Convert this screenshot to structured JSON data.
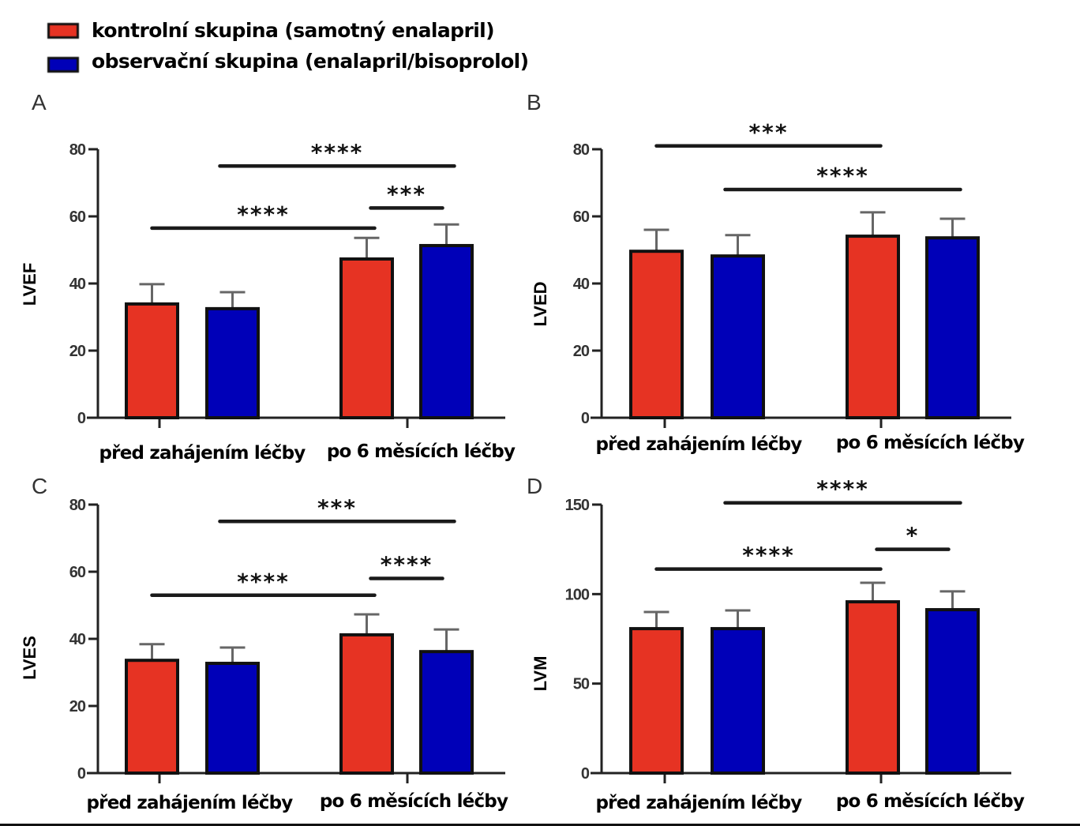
{
  "legend": {
    "items": [
      {
        "label": "kontrolní skupina (samotný enalapril)",
        "color": "#e63323"
      },
      {
        "label": "observační skupina (enalapril/bisoprolol)",
        "color": "#0000b8"
      }
    ]
  },
  "colors": {
    "control": "#e63323",
    "observation": "#0000b8",
    "axis": "#222222",
    "error": "#666666"
  },
  "chart_data": [
    {
      "panel": "A",
      "type": "bar",
      "ylabel": "LVEF",
      "xlabel": "",
      "ylim": [
        0,
        80
      ],
      "yticks": [
        "0",
        "20",
        "40",
        "60",
        "80"
      ],
      "ytick_values": [
        0,
        20,
        40,
        60,
        80
      ],
      "categories": [
        "před zahájením léčby",
        "po 6 měsících léčby"
      ],
      "series": [
        {
          "name": "kontrolní skupina (samotný enalapril)",
          "values": [
            33.9,
            47.3
          ],
          "error": [
            5.9,
            6.3
          ]
        },
        {
          "name": "observační skupina (enalapril/bisoprolol)",
          "values": [
            32.5,
            51.3
          ],
          "error": [
            4.9,
            6.3
          ]
        }
      ],
      "significance": [
        {
          "from": [
            0,
            1
          ],
          "to": [
            1,
            1
          ],
          "y": 75,
          "label": "****"
        },
        {
          "from": [
            1,
            0
          ],
          "to": [
            1,
            1
          ],
          "y": 62.5,
          "label": "***"
        },
        {
          "from": [
            0,
            0
          ],
          "to": [
            1,
            0
          ],
          "y": 56.5,
          "label": "****"
        }
      ],
      "legend": "top-left"
    },
    {
      "panel": "B",
      "type": "bar",
      "ylabel": "LVED",
      "xlabel": "",
      "ylim": [
        0,
        80
      ],
      "yticks": [
        "0",
        "20",
        "40",
        "60",
        "80"
      ],
      "ytick_values": [
        0,
        20,
        40,
        60,
        80
      ],
      "categories": [
        "před zahájením léčby",
        "po 6 měsících léčby"
      ],
      "series": [
        {
          "name": "kontrolní skupina (samotný enalapril)",
          "values": [
            49.6,
            54.1
          ],
          "error": [
            6.4,
            7.1
          ]
        },
        {
          "name": "observační skupina (enalapril/bisoprolol)",
          "values": [
            48.2,
            53.6
          ],
          "error": [
            6.2,
            5.7
          ]
        }
      ],
      "significance": [
        {
          "from": [
            0,
            0
          ],
          "to": [
            1,
            0
          ],
          "y": 81,
          "label": "***"
        },
        {
          "from": [
            0,
            1
          ],
          "to": [
            1,
            1
          ],
          "y": 68,
          "label": "****"
        }
      ]
    },
    {
      "panel": "C",
      "type": "bar",
      "ylabel": "LVES",
      "xlabel": "",
      "ylim": [
        0,
        80
      ],
      "yticks": [
        "0",
        "20",
        "40",
        "60",
        "80"
      ],
      "ytick_values": [
        0,
        20,
        40,
        60,
        80
      ],
      "categories": [
        "před zahájením léčby",
        "po 6 měsících léčby"
      ],
      "series": [
        {
          "name": "kontrolní skupina (samotný enalapril)",
          "values": [
            33.6,
            41.2
          ],
          "error": [
            4.8,
            6.1
          ]
        },
        {
          "name": "observační skupina (enalapril/bisoprolol)",
          "values": [
            32.7,
            36.2
          ],
          "error": [
            4.7,
            6.6
          ]
        }
      ],
      "significance": [
        {
          "from": [
            0,
            1
          ],
          "to": [
            1,
            1
          ],
          "y": 75,
          "label": "***"
        },
        {
          "from": [
            1,
            0
          ],
          "to": [
            1,
            1
          ],
          "y": 58,
          "label": "****"
        },
        {
          "from": [
            0,
            0
          ],
          "to": [
            1,
            0
          ],
          "y": 53,
          "label": "****"
        }
      ]
    },
    {
      "panel": "D",
      "type": "bar",
      "ylabel": "LVM",
      "xlabel": "",
      "ylim": [
        0,
        150
      ],
      "yticks": [
        "0",
        "50",
        "100",
        "150"
      ],
      "ytick_values": [
        0,
        50,
        100,
        150
      ],
      "categories": [
        "před zahájením léčby",
        "po 6 měsících léčby"
      ],
      "series": [
        {
          "name": "kontrolní skupina (samotný enalapril)",
          "values": [
            80.7,
            95.7
          ],
          "error": [
            9.3,
            10.6
          ]
        },
        {
          "name": "observační skupina (enalapril/bisoprolol)",
          "values": [
            80.7,
            91.3
          ],
          "error": [
            10.2,
            10.2
          ]
        }
      ],
      "significance": [
        {
          "from": [
            0,
            1
          ],
          "to": [
            1,
            1
          ],
          "y": 151,
          "label": "****"
        },
        {
          "from": [
            1,
            0
          ],
          "to": [
            1,
            1
          ],
          "y": 125,
          "label": "*"
        },
        {
          "from": [
            0,
            0
          ],
          "to": [
            1,
            0
          ],
          "y": 114,
          "label": "****"
        }
      ]
    }
  ]
}
